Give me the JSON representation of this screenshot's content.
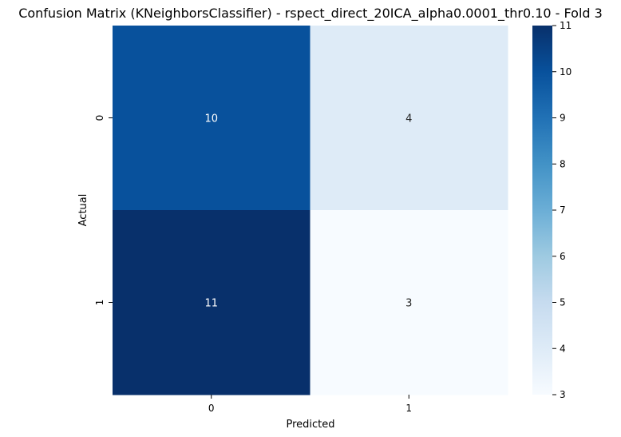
{
  "chart_data": {
    "type": "heatmap",
    "title": "Confusion Matrix (KNeighborsClassifier) - rspect_direct_20ICA_alpha0.0001_thr0.10 - Fold 3",
    "xlabel": "Predicted",
    "ylabel": "Actual",
    "x_categories": [
      "0",
      "1"
    ],
    "y_categories": [
      "0",
      "1"
    ],
    "values": [
      [
        10,
        4
      ],
      [
        11,
        3
      ]
    ],
    "colormap": "Blues",
    "vmin": 3,
    "vmax": 11,
    "colorbar_ticks": [
      3,
      4,
      5,
      6,
      7,
      8,
      9,
      10,
      11
    ],
    "annotate_cells": true,
    "grid": false
  }
}
